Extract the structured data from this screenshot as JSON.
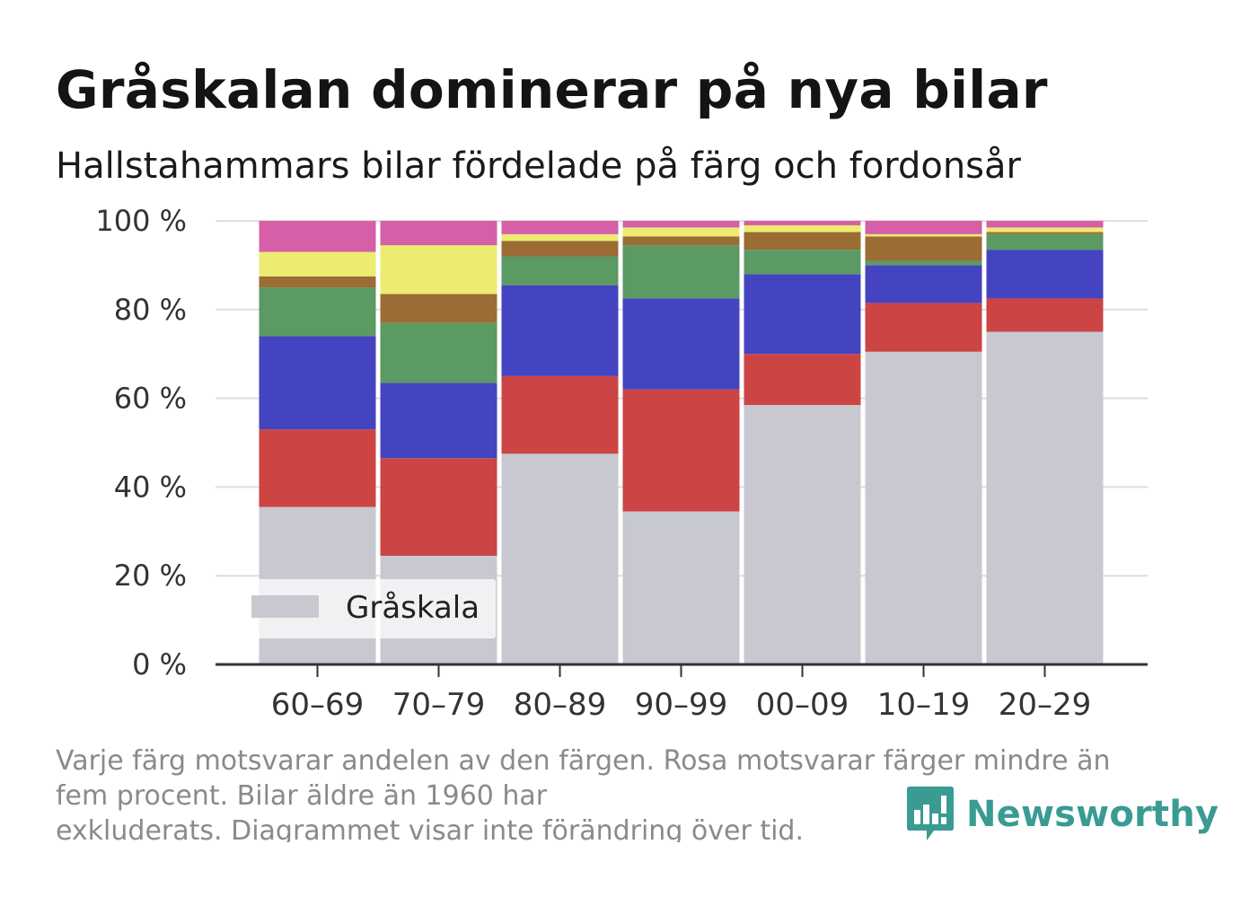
{
  "title": "Gråskalan dominerar på nya bilar",
  "subtitle": "Hallstahammars bilar fördelade på färg och fordonsår",
  "footnote": {
    "line1": "Varje färg motsvarar andelen av den färgen. Rosa motsvarar färger mindre än",
    "line2": "fem procent. Bilar äldre än 1960 har",
    "line3": "exkluderats. Diagrammet visar inte förändring över tid."
  },
  "brand": {
    "name": "Newsworthy",
    "color": "#3a9b93"
  },
  "chart_data": {
    "type": "bar",
    "stacked": true,
    "categories": [
      "60–69",
      "70–79",
      "80–89",
      "90–99",
      "00–09",
      "10–19",
      "20–29"
    ],
    "ylim": [
      0,
      100
    ],
    "y_ticks": [
      0,
      20,
      40,
      60,
      80,
      100
    ],
    "y_tick_labels": [
      "0 %",
      "20 %",
      "40 %",
      "60 %",
      "80 %",
      "100 %"
    ],
    "grid": true,
    "legend": {
      "entries": [
        "Gråskala"
      ],
      "position": "bottom-left"
    },
    "series": [
      {
        "name": "Gråskala",
        "color": "#c8c8d0",
        "values": [
          35.5,
          24.5,
          47.5,
          34.5,
          58.5,
          70.5,
          75
        ]
      },
      {
        "color": "#cc4444",
        "values": [
          17.5,
          22,
          17.5,
          27.5,
          11.5,
          11,
          7.5
        ]
      },
      {
        "color": "#4444c1",
        "values": [
          21,
          17,
          20.5,
          20.5,
          18,
          8.5,
          11
        ]
      },
      {
        "color": "#5b9a62",
        "values": [
          11,
          13.5,
          6.5,
          12,
          5.5,
          1,
          3.5
        ]
      },
      {
        "color": "#9b6c34",
        "values": [
          2.5,
          6.5,
          3.5,
          2,
          4,
          5.5,
          0.5
        ]
      },
      {
        "color": "#ecec72",
        "values": [
          5.5,
          11,
          1.5,
          2,
          1.5,
          0.5,
          1
        ]
      },
      {
        "color": "#d65fa8",
        "values": [
          7,
          5.5,
          3,
          1.5,
          1,
          3,
          1.5
        ]
      }
    ]
  }
}
